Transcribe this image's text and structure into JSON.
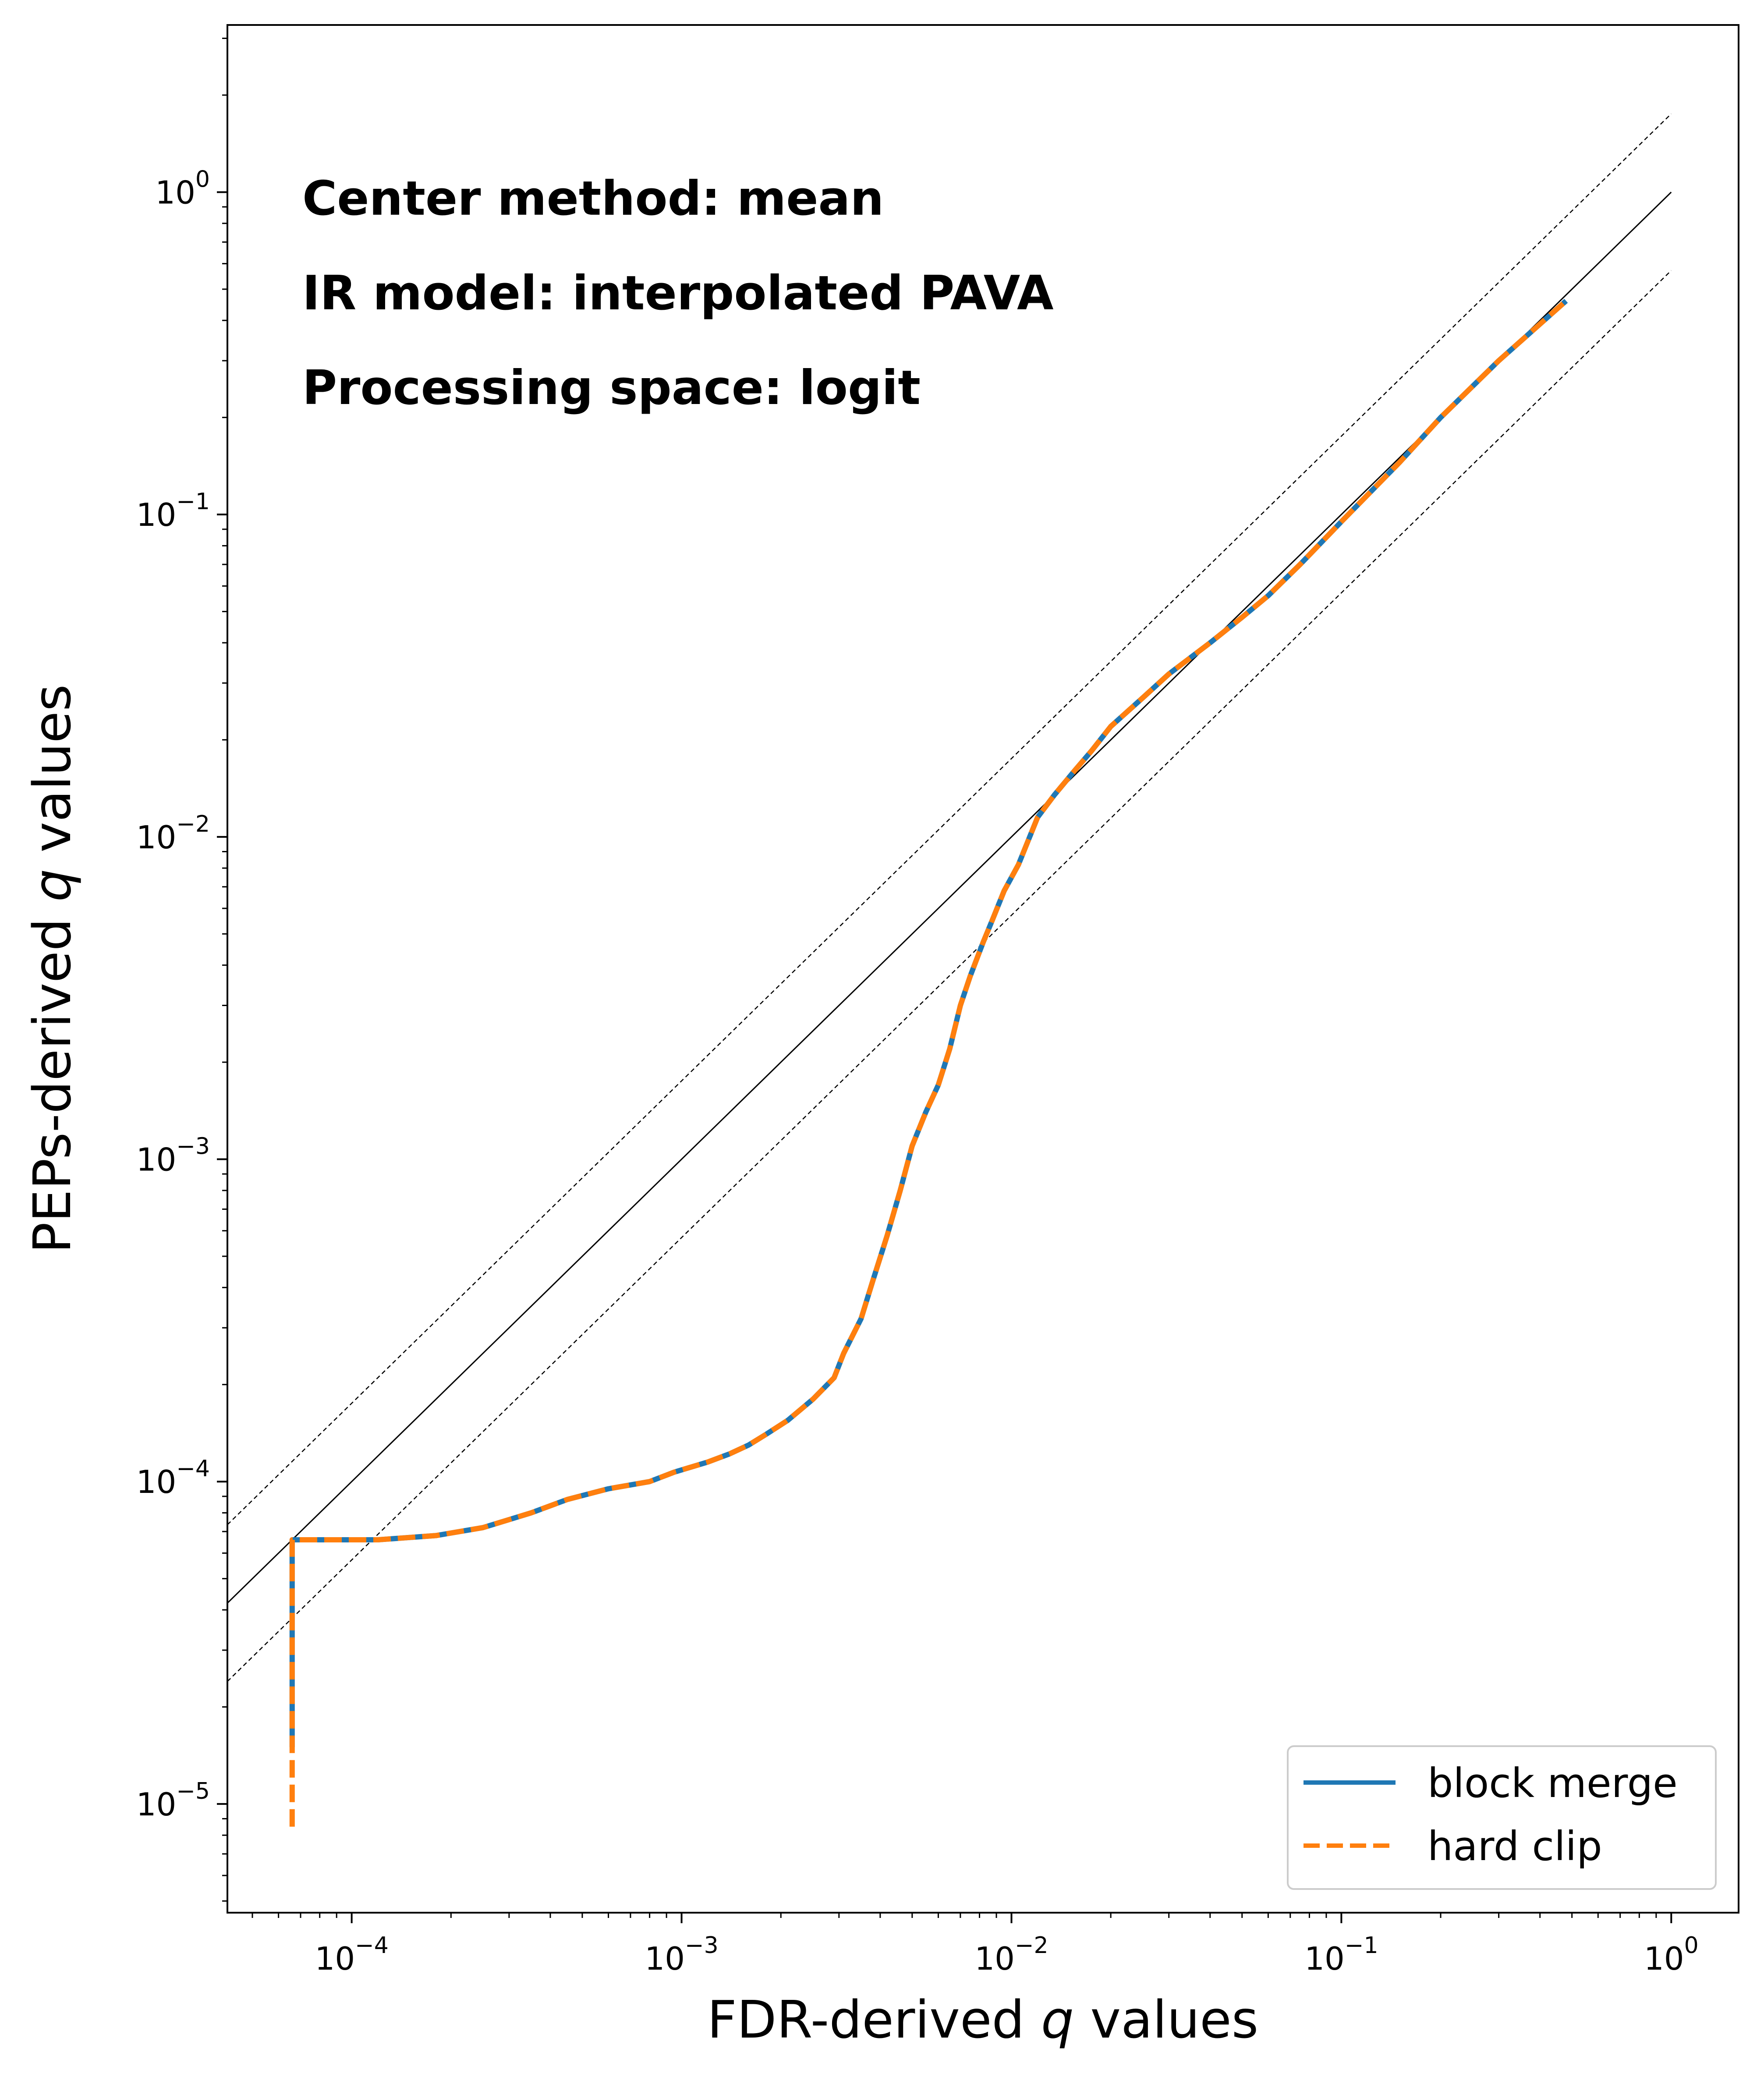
{
  "chart_data": {
    "type": "line",
    "xscale": "log",
    "yscale": "log",
    "xlim": [
      4.2e-05,
      1.6
    ],
    "ylim": [
      4.6e-06,
      3.3
    ],
    "xticks": [
      {
        "value": 0.0001,
        "base": "10",
        "exp": "−4"
      },
      {
        "value": 0.001,
        "base": "10",
        "exp": "−3"
      },
      {
        "value": 0.01,
        "base": "10",
        "exp": "−2"
      },
      {
        "value": 0.1,
        "base": "10",
        "exp": "−1"
      },
      {
        "value": 1,
        "base": "10",
        "exp": "0"
      }
    ],
    "yticks": [
      {
        "value": 1e-05,
        "base": "10",
        "exp": "−5"
      },
      {
        "value": 0.0001,
        "base": "10",
        "exp": "−4"
      },
      {
        "value": 0.001,
        "base": "10",
        "exp": "−3"
      },
      {
        "value": 0.01,
        "base": "10",
        "exp": "−2"
      },
      {
        "value": 0.1,
        "base": "10",
        "exp": "−1"
      },
      {
        "value": 1,
        "base": "10",
        "exp": "0"
      }
    ],
    "xlabel": {
      "pre": "FDR-derived ",
      "var": "q",
      "post": " values"
    },
    "ylabel": {
      "pre": "PEPs-derived ",
      "var": "q",
      "post": " values"
    },
    "annotations": [
      "Center method: mean",
      "IR model: interpolated PAVA",
      "Processing space: logit"
    ],
    "reference_lines": {
      "identity": {
        "factor": 1,
        "style": "solid",
        "color": "#000000"
      },
      "bounds": [
        {
          "factor": 1.75,
          "style": "dashed",
          "color": "#000000"
        },
        {
          "factor": 0.5714,
          "style": "dashed",
          "color": "#000000"
        }
      ]
    },
    "legend_position": "lower right",
    "series": [
      {
        "name": "block merge",
        "color": "#1f77b4",
        "style": "solid",
        "x": [
          6.6e-05,
          6.6e-05,
          6.6e-05,
          0.00012,
          0.00018,
          0.00025,
          0.00035,
          0.00045,
          0.0006,
          0.0008,
          0.00095,
          0.0012,
          0.0014,
          0.0016,
          0.0018,
          0.0021,
          0.0025,
          0.0029,
          0.0031,
          0.0035,
          0.0038,
          0.0042,
          0.0046,
          0.005,
          0.0055,
          0.006,
          0.0065,
          0.007,
          0.0075,
          0.0082,
          0.0088,
          0.0095,
          0.0105,
          0.012,
          0.0135,
          0.0155,
          0.0175,
          0.02,
          0.025,
          0.03,
          0.04,
          0.05,
          0.06,
          0.075,
          0.1,
          0.15,
          0.2,
          0.3,
          0.48
        ],
        "y": [
          1.5e-05,
          3e-05,
          6.6e-05,
          6.6e-05,
          6.8e-05,
          7.2e-05,
          8e-05,
          8.8e-05,
          9.5e-05,
          0.0001,
          0.000107,
          0.000115,
          0.000122,
          0.00013,
          0.00014,
          0.000155,
          0.00018,
          0.00021,
          0.00025,
          0.00032,
          0.00042,
          0.00058,
          0.0008,
          0.0011,
          0.0014,
          0.0017,
          0.0022,
          0.003,
          0.0037,
          0.0047,
          0.0056,
          0.0068,
          0.0082,
          0.0115,
          0.0135,
          0.016,
          0.0185,
          0.022,
          0.027,
          0.032,
          0.04,
          0.048,
          0.056,
          0.07,
          0.095,
          0.145,
          0.2,
          0.3,
          0.46
        ]
      },
      {
        "name": "hard clip",
        "color": "#ff7f0e",
        "style": "dashed",
        "x": [
          6.6e-05,
          6.6e-05,
          6.6e-05,
          0.00012,
          0.00018,
          0.00025,
          0.00035,
          0.00045,
          0.0006,
          0.0008,
          0.00095,
          0.0012,
          0.0014,
          0.0016,
          0.0018,
          0.0021,
          0.0025,
          0.0029,
          0.0031,
          0.0035,
          0.0038,
          0.0042,
          0.0046,
          0.005,
          0.0055,
          0.006,
          0.0065,
          0.007,
          0.0075,
          0.0082,
          0.0088,
          0.0095,
          0.0105,
          0.012,
          0.0135,
          0.0155,
          0.0175,
          0.02,
          0.025,
          0.03,
          0.04,
          0.05,
          0.06,
          0.075,
          0.1,
          0.15,
          0.2,
          0.3,
          0.48
        ],
        "y": [
          8.5e-06,
          3e-05,
          6.6e-05,
          6.6e-05,
          6.8e-05,
          7.2e-05,
          8e-05,
          8.8e-05,
          9.5e-05,
          0.0001,
          0.000107,
          0.000115,
          0.000122,
          0.00013,
          0.00014,
          0.000155,
          0.00018,
          0.00021,
          0.00025,
          0.00032,
          0.00042,
          0.00058,
          0.0008,
          0.0011,
          0.0014,
          0.0017,
          0.0022,
          0.003,
          0.0037,
          0.0047,
          0.0056,
          0.0068,
          0.0082,
          0.0115,
          0.0135,
          0.016,
          0.0185,
          0.022,
          0.027,
          0.032,
          0.04,
          0.048,
          0.056,
          0.07,
          0.095,
          0.145,
          0.2,
          0.3,
          0.46
        ]
      }
    ]
  }
}
